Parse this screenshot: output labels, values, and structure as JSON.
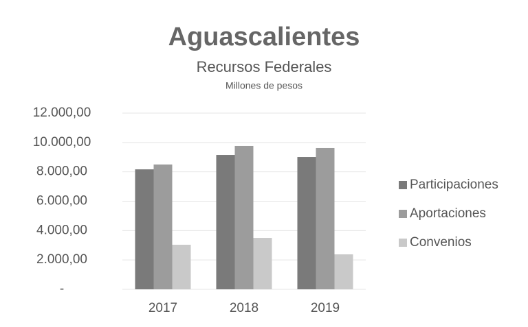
{
  "chart_data": {
    "type": "bar",
    "title": "Aguascalientes",
    "subtitle": "Recursos Federales",
    "y_label": "Millones de pesos",
    "categories": [
      "2017",
      "2018",
      "2019"
    ],
    "series": [
      {
        "name": "Participaciones",
        "color": "#7a7a7a",
        "values": [
          8170,
          9150,
          9010
        ]
      },
      {
        "name": "Aportaciones",
        "color": "#9c9c9c",
        "values": [
          8500,
          9760,
          9620
        ]
      },
      {
        "name": "Convenios",
        "color": "#c9c9c9",
        "values": [
          3035,
          3500,
          2380
        ]
      }
    ],
    "ylim": [
      0,
      12000
    ],
    "yticks": [
      {
        "value": 0,
        "label": "-"
      },
      {
        "value": 2000,
        "label": "2.000,00"
      },
      {
        "value": 4000,
        "label": "4.000,00"
      },
      {
        "value": 6000,
        "label": "6.000,00"
      },
      {
        "value": 8000,
        "label": "8.000,00"
      },
      {
        "value": 10000,
        "label": "10.000,00"
      },
      {
        "value": 12000,
        "label": "12.000,00"
      }
    ],
    "grid": true,
    "legend": "right"
  }
}
